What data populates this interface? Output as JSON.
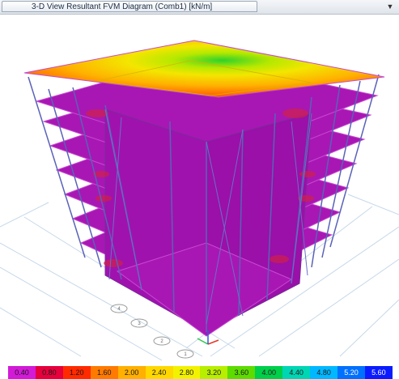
{
  "window": {
    "tab_title": "3-D View   Resultant FVM Diagram   (Comb1)  [kN/m]",
    "dropdown_icon": "chevron-down-icon"
  },
  "grid_bubbles": [
    "4",
    "3",
    "2",
    "1"
  ],
  "legend": {
    "labels": [
      "0.40",
      "0.80",
      "1.20",
      "1.60",
      "2.00",
      "2.40",
      "2.80",
      "3.20",
      "3.60",
      "4.00",
      "4.40",
      "4.80",
      "5.20",
      "5.60"
    ],
    "colors": [
      "#d21ad7",
      "#e6003c",
      "#ff2a00",
      "#ff7a00",
      "#ffb000",
      "#ffd800",
      "#f2f200",
      "#b8ee00",
      "#5ddc00",
      "#00cf4a",
      "#00d6b4",
      "#00b8ff",
      "#0070ff",
      "#0a1cff"
    ]
  },
  "colors": {
    "slab": "#a817b4",
    "slab_edge": "#c84ad2",
    "column": "#5a62b8",
    "grid": "#c5d8ea"
  }
}
